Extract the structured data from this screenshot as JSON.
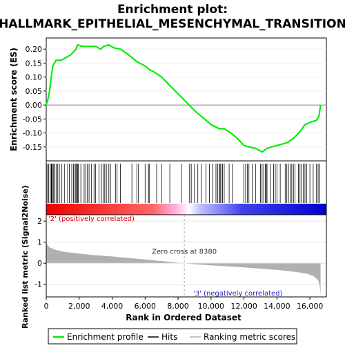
{
  "title_line1": "Enrichment plot:",
  "title_line2": "HALLMARK_EPITHELIAL_MESENCHYMAL_TRANSITION",
  "chart_data": {
    "type": "line",
    "panels": {
      "es": {
        "ylabel": "Enrichment score (ES)",
        "ylim": [
          -0.2,
          0.24
        ],
        "yticks": [
          "0.20",
          "0.15",
          "0.10",
          "0.05",
          "0.00",
          "-0.05",
          "-0.10",
          "-0.15"
        ],
        "ytick_values": [
          0.2,
          0.15,
          0.1,
          0.05,
          0.0,
          -0.05,
          -0.1,
          -0.15
        ],
        "series_color": "#00ee00",
        "profile": [
          [
            0,
            0
          ],
          [
            100,
            0.02
          ],
          [
            200,
            0.05
          ],
          [
            300,
            0.1
          ],
          [
            400,
            0.14
          ],
          [
            600,
            0.16
          ],
          [
            900,
            0.16
          ],
          [
            1200,
            0.17
          ],
          [
            1500,
            0.18
          ],
          [
            1800,
            0.2
          ],
          [
            1900,
            0.215
          ],
          [
            2200,
            0.21
          ],
          [
            2600,
            0.21
          ],
          [
            3000,
            0.21
          ],
          [
            3300,
            0.2
          ],
          [
            3500,
            0.21
          ],
          [
            3800,
            0.215
          ],
          [
            4100,
            0.205
          ],
          [
            4500,
            0.2
          ],
          [
            5000,
            0.18
          ],
          [
            5500,
            0.155
          ],
          [
            6000,
            0.14
          ],
          [
            6300,
            0.125
          ],
          [
            6500,
            0.12
          ],
          [
            7000,
            0.1
          ],
          [
            7500,
            0.07
          ],
          [
            8000,
            0.04
          ],
          [
            8500,
            0.01
          ],
          [
            9000,
            -0.02
          ],
          [
            9500,
            -0.045
          ],
          [
            10000,
            -0.07
          ],
          [
            10500,
            -0.085
          ],
          [
            10800,
            -0.085
          ],
          [
            11200,
            -0.1
          ],
          [
            11600,
            -0.12
          ],
          [
            12000,
            -0.145
          ],
          [
            12300,
            -0.15
          ],
          [
            12700,
            -0.155
          ],
          [
            13100,
            -0.168
          ],
          [
            13400,
            -0.155
          ],
          [
            13800,
            -0.148
          ],
          [
            14200,
            -0.142
          ],
          [
            14600,
            -0.135
          ],
          [
            15000,
            -0.12
          ],
          [
            15400,
            -0.095
          ],
          [
            15700,
            -0.07
          ],
          [
            16100,
            -0.06
          ],
          [
            16400,
            -0.055
          ],
          [
            16550,
            -0.04
          ],
          [
            16650,
            0.0
          ]
        ]
      },
      "hits": {
        "positions": [
          50,
          150,
          230,
          300,
          330,
          380,
          450,
          520,
          600,
          700,
          800,
          950,
          1100,
          1300,
          1400,
          1550,
          1650,
          1750,
          1800,
          1850,
          1900,
          1950,
          2100,
          2300,
          2400,
          2500,
          2600,
          2750,
          2900,
          3000,
          3200,
          3350,
          3450,
          3550,
          3650,
          3800,
          3900,
          4200,
          4300,
          4500,
          5200,
          5500,
          5600,
          6000,
          6200,
          6250,
          6700,
          7000,
          7500,
          8200,
          8700,
          8800,
          9000,
          9200,
          9400,
          9700,
          9900,
          10100,
          10300,
          10400,
          10500,
          10550,
          10600,
          10700,
          10800,
          11100,
          11300,
          12000,
          12100,
          12200,
          12300,
          12500,
          12700,
          13000,
          13100,
          13200,
          13300,
          13350,
          13400,
          13600,
          13800,
          13900,
          14000,
          14200,
          14500,
          14600,
          14700,
          14800,
          14900,
          15000,
          15100,
          15300,
          15400,
          15500,
          15600,
          15700,
          15800,
          16000,
          16200,
          16400,
          16500,
          16600
        ],
        "band": [
          "#ee0000",
          "#ff6666",
          "#ffb0e0",
          "#ffffff",
          "#c0c0ff",
          "#4040ee",
          "#0000cc"
        ]
      },
      "metric": {
        "ylabel": "Ranked list metric (Signal2Noise)",
        "ylim": [
          -1.6,
          2.3
        ],
        "yticks": [
          "2",
          "1",
          "0",
          "-1"
        ],
        "ytick_values": [
          2,
          1,
          0,
          -1
        ],
        "fill_color": "#b0b0b0",
        "curve": [
          [
            0,
            1.0
          ],
          [
            50,
            0.9
          ],
          [
            200,
            0.75
          ],
          [
            500,
            0.65
          ],
          [
            1000,
            0.55
          ],
          [
            2000,
            0.45
          ],
          [
            3000,
            0.38
          ],
          [
            4000,
            0.32
          ],
          [
            5000,
            0.25
          ],
          [
            6000,
            0.18
          ],
          [
            7000,
            0.1
          ],
          [
            8380,
            0.0
          ],
          [
            9000,
            -0.05
          ],
          [
            10000,
            -0.1
          ],
          [
            11000,
            -0.15
          ],
          [
            12000,
            -0.2
          ],
          [
            13000,
            -0.26
          ],
          [
            14000,
            -0.32
          ],
          [
            15000,
            -0.4
          ],
          [
            15800,
            -0.5
          ],
          [
            16200,
            -0.6
          ],
          [
            16500,
            -0.8
          ],
          [
            16600,
            -1.1
          ],
          [
            16650,
            -1.5
          ]
        ],
        "zero_cross_text": "Zero cross at 8380",
        "zero_cross": 8380,
        "pos_label": "'2' (positively correlated)",
        "neg_label": "'3' (negatively correlated)"
      }
    },
    "xlabel": "Rank in Ordered Dataset",
    "xlim": [
      0,
      17000
    ],
    "xticks": [
      "0",
      "2,000",
      "4,000",
      "6,000",
      "8,000",
      "10,000",
      "12,000",
      "14,000",
      "16,000"
    ],
    "xtick_values": [
      0,
      2000,
      4000,
      6000,
      8000,
      10000,
      12000,
      14000,
      16000
    ],
    "n_genes": 16650,
    "legend": {
      "items": [
        {
          "label": "Enrichment profile",
          "color": "#00ee00"
        },
        {
          "label": "Hits",
          "color": "#000000"
        },
        {
          "label": "Ranking metric scores",
          "color": "#b0b0b0"
        }
      ]
    }
  }
}
